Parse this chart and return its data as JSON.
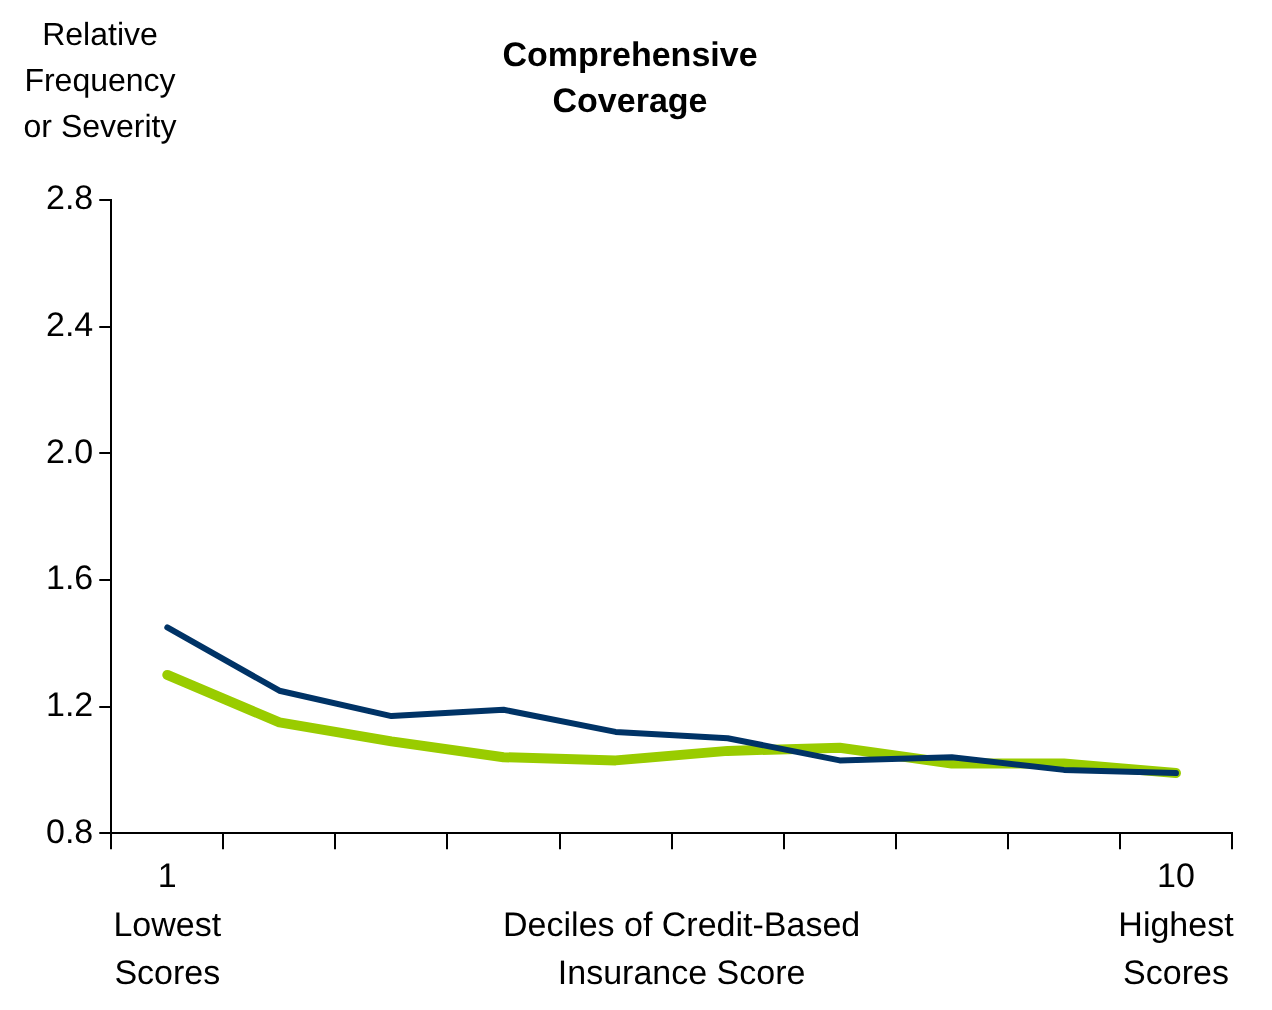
{
  "chart_data": {
    "type": "line",
    "title": "Comprehensive Coverage",
    "ylabel": "Relative Frequency or Severity",
    "xlabel": "Deciles of Credit-Based Insurance Score",
    "categories": [
      "1",
      null,
      null,
      null,
      null,
      null,
      null,
      null,
      null,
      "10"
    ],
    "series": [
      {
        "color": "#003366",
        "values": [
          1.45,
          1.25,
          1.17,
          1.19,
          1.12,
          1.1,
          1.03,
          1.04,
          1.0,
          0.99
        ]
      },
      {
        "color": "#99cc00",
        "values": [
          1.3,
          1.15,
          1.09,
          1.04,
          1.03,
          1.06,
          1.07,
          1.02,
          1.02,
          0.99
        ]
      }
    ],
    "ylim": [
      0.8,
      2.8
    ],
    "yticks": [
      0.8,
      1.2,
      1.6,
      {
        "value": 2,
        "label": "2.0"
      },
      2.4,
      2.8
    ],
    "annotations": [
      "Lowest Scores",
      "Highest Scores"
    ],
    "grid": false,
    "legend": false,
    "marker": "none",
    "line_style": "solid"
  }
}
